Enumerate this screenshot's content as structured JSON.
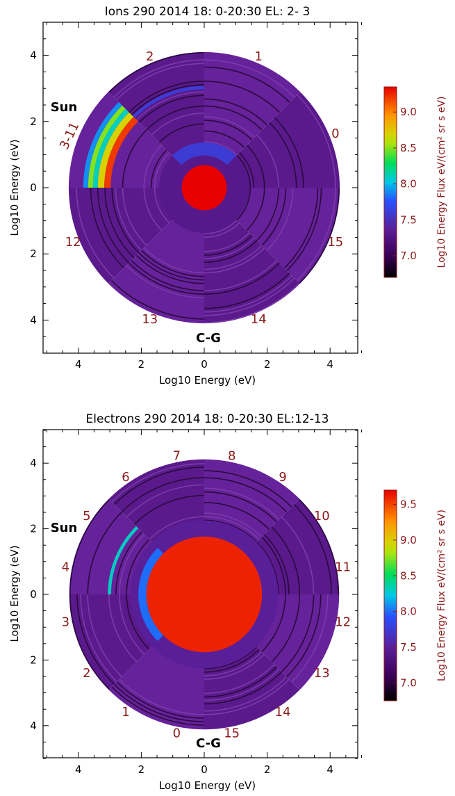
{
  "chart_data": [
    {
      "type": "heatmap",
      "projection": "polar energy-angle",
      "title": "Ions 290 2014 18: 0-20:30 EL: 2- 3",
      "xlabel": "Log10 Energy (eV)",
      "ylabel": "Log10 Energy (eV)",
      "x_ticks": [
        "4",
        "2",
        "0",
        "2",
        "4"
      ],
      "y_ticks": [
        "4",
        "2",
        "0",
        "2",
        "4"
      ],
      "xlim": [
        -5,
        5
      ],
      "ylim": [
        -5,
        5
      ],
      "sector_labels": [
        {
          "text": "0",
          "angle_deg": 22.5
        },
        {
          "text": "1",
          "angle_deg": 67.5
        },
        {
          "text": "2",
          "angle_deg": 112.5
        },
        {
          "text": "3-11",
          "angle_deg": 157.5
        },
        {
          "text": "12",
          "angle_deg": 202.5
        },
        {
          "text": "13",
          "angle_deg": 247.5
        },
        {
          "text": "14",
          "angle_deg": 292.5
        },
        {
          "text": "15",
          "angle_deg": 337.5
        }
      ],
      "direction_labels": {
        "sun": "Sun",
        "comet": "C-G"
      },
      "sun_angle_deg": 157.5,
      "comet_angle_deg": 270,
      "sectors": [
        {
          "start_deg": 0,
          "end_deg": 45,
          "max_log_energy": 4.2
        },
        {
          "start_deg": 45,
          "end_deg": 90,
          "max_log_energy": 4.2
        },
        {
          "start_deg": 90,
          "end_deg": 135,
          "max_log_energy": 4.2
        },
        {
          "start_deg": 135,
          "end_deg": 180,
          "max_log_energy": 4.2
        },
        {
          "start_deg": 180,
          "end_deg": 225,
          "max_log_energy": 4.2
        },
        {
          "start_deg": 225,
          "end_deg": 270,
          "max_log_energy": 4.2
        },
        {
          "start_deg": 270,
          "end_deg": 315,
          "max_log_energy": 4.2
        },
        {
          "start_deg": 315,
          "end_deg": 360,
          "max_log_energy": 4.2
        }
      ],
      "inner_disk": {
        "max_log_energy": 0.7,
        "value": 9.4
      },
      "enhanced_bands": [
        {
          "r_min": 0.7,
          "r_max": 1.4,
          "start_deg": 0,
          "end_deg": 360,
          "value": 7.3
        },
        {
          "r_min": 1.0,
          "r_max": 1.4,
          "start_deg": 45,
          "end_deg": 135,
          "value": 7.6
        },
        {
          "r_min": 3.05,
          "r_max": 3.15,
          "start_deg": 90,
          "end_deg": 135,
          "value": 7.6
        },
        {
          "r_min": 2.9,
          "r_max": 3.1,
          "start_deg": 135,
          "end_deg": 180,
          "value": 9.2
        },
        {
          "r_min": 3.1,
          "r_max": 3.3,
          "start_deg": 135,
          "end_deg": 180,
          "value": 8.7
        },
        {
          "r_min": 3.3,
          "r_max": 3.45,
          "start_deg": 135,
          "end_deg": 180,
          "value": 8.1
        },
        {
          "r_min": 3.45,
          "r_max": 3.6,
          "start_deg": 135,
          "end_deg": 180,
          "value": 8.5
        },
        {
          "r_min": 3.6,
          "r_max": 3.75,
          "start_deg": 135,
          "end_deg": 180,
          "value": 7.9
        }
      ],
      "colorbar": {
        "label": "Log10 Energy Flux eV/(cm² sr s eV)",
        "min": 6.7,
        "max": 9.35,
        "ticks": [
          7.0,
          7.5,
          8.0,
          8.5,
          9.0
        ],
        "tick_labels": [
          "7.0",
          "7.5",
          "8.0",
          "8.5",
          "9.0"
        ]
      }
    },
    {
      "type": "heatmap",
      "projection": "polar energy-angle",
      "title": "Electrons 290 2014 18: 0-20:30 EL:12-13",
      "xlabel": "Log10 Energy (eV)",
      "ylabel": "Log10 Energy (eV)",
      "x_ticks": [
        "4",
        "2",
        "0",
        "2",
        "4"
      ],
      "y_ticks": [
        "4",
        "2",
        "0",
        "2",
        "4"
      ],
      "xlim": [
        -5,
        5
      ],
      "ylim": [
        -5,
        5
      ],
      "sector_labels": [
        {
          "text": "0",
          "angle_deg": -101.25
        },
        {
          "text": "1",
          "angle_deg": -123.75
        },
        {
          "text": "2",
          "angle_deg": -146.25
        },
        {
          "text": "3",
          "angle_deg": -168.75
        },
        {
          "text": "4",
          "angle_deg": 168.75
        },
        {
          "text": "5",
          "angle_deg": 146.25
        },
        {
          "text": "6",
          "angle_deg": 123.75
        },
        {
          "text": "7",
          "angle_deg": 101.25
        },
        {
          "text": "8",
          "angle_deg": 78.75
        },
        {
          "text": "9",
          "angle_deg": 56.25
        },
        {
          "text": "10",
          "angle_deg": 33.75
        },
        {
          "text": "11",
          "angle_deg": 11.25
        },
        {
          "text": "12",
          "angle_deg": -11.25
        },
        {
          "text": "13",
          "angle_deg": -33.75
        },
        {
          "text": "14",
          "angle_deg": -56.25
        },
        {
          "text": "15",
          "angle_deg": -78.75
        }
      ],
      "direction_labels": {
        "sun": "Sun",
        "comet": "C-G"
      },
      "sun_angle_deg": 146.25,
      "comet_angle_deg": 270,
      "sectors": [
        {
          "start_deg": 0,
          "end_deg": 45,
          "max_log_energy": 4.2
        },
        {
          "start_deg": 45,
          "end_deg": 90,
          "max_log_energy": 4.2
        },
        {
          "start_deg": 90,
          "end_deg": 135,
          "max_log_energy": 4.2
        },
        {
          "start_deg": 135,
          "end_deg": 180,
          "max_log_energy": 4.2
        },
        {
          "start_deg": 180,
          "end_deg": 225,
          "max_log_energy": 4.2
        },
        {
          "start_deg": 225,
          "end_deg": 270,
          "max_log_energy": 4.2
        },
        {
          "start_deg": 270,
          "end_deg": 315,
          "max_log_energy": 4.2
        },
        {
          "start_deg": 315,
          "end_deg": 360,
          "max_log_energy": 4.2
        }
      ],
      "inner_disk": {
        "max_log_energy": 1.8,
        "value": 9.6
      },
      "enhanced_bands": [
        {
          "r_min": 1.8,
          "r_max": 2.3,
          "start_deg": 0,
          "end_deg": 360,
          "value": 7.5
        },
        {
          "r_min": 1.8,
          "r_max": 2.05,
          "start_deg": 135,
          "end_deg": 225,
          "value": 8.0
        },
        {
          "r_min": 2.9,
          "r_max": 3.0,
          "start_deg": 135,
          "end_deg": 180,
          "value": 8.3
        }
      ],
      "colorbar": {
        "label": "Log10 Energy Flux eV/(cm² sr s eV)",
        "min": 6.75,
        "max": 9.7,
        "ticks": [
          7.0,
          7.5,
          8.0,
          8.5,
          9.0,
          9.5
        ],
        "tick_labels": [
          "7.0",
          "7.5",
          "8.0",
          "8.5",
          "9.0",
          "9.5"
        ]
      }
    }
  ],
  "colors": {
    "background_flux": "#5a1a8c",
    "ring_dark": "#2a0a3e",
    "ring_light": "#7a3aa8",
    "label_red": "#8b1a1a"
  }
}
